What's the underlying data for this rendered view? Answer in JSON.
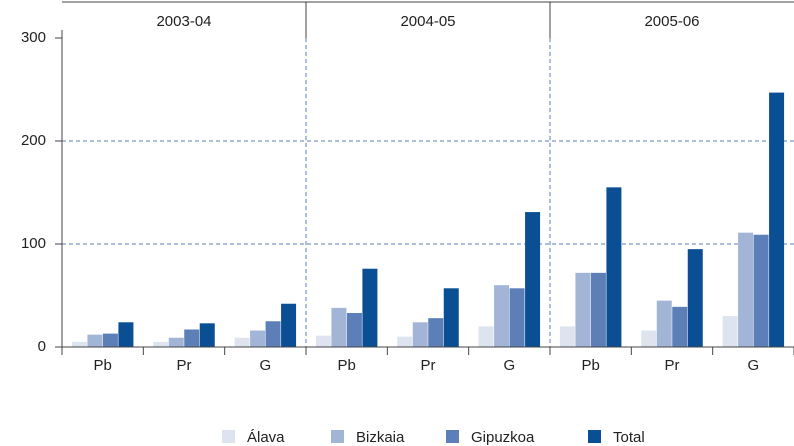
{
  "chart_data": {
    "type": "bar",
    "groups": [
      "2003-04",
      "2004-05",
      "2005-06"
    ],
    "categories": [
      "Pb",
      "Pr",
      "G",
      "Pb",
      "Pr",
      "G",
      "Pb",
      "Pr",
      "G"
    ],
    "series": [
      {
        "name": "Álava",
        "color": "#dde4f0",
        "values": [
          5,
          5,
          9,
          11,
          10,
          20,
          20,
          16,
          30
        ]
      },
      {
        "name": "Bizkaia",
        "color": "#a3b5d6",
        "values": [
          12,
          9,
          16,
          38,
          24,
          60,
          72,
          45,
          111
        ]
      },
      {
        "name": "Gipuzkoa",
        "color": "#5c7fb8",
        "values": [
          13,
          17,
          25,
          33,
          28,
          57,
          72,
          39,
          109
        ]
      },
      {
        "name": "Total",
        "color": "#0a4f94",
        "values": [
          24,
          23,
          42,
          76,
          57,
          131,
          155,
          95,
          247
        ]
      }
    ],
    "ylim": [
      0,
      300
    ],
    "yticks": [
      0,
      100,
      200,
      300
    ],
    "grid": true,
    "legend": "bottom"
  }
}
